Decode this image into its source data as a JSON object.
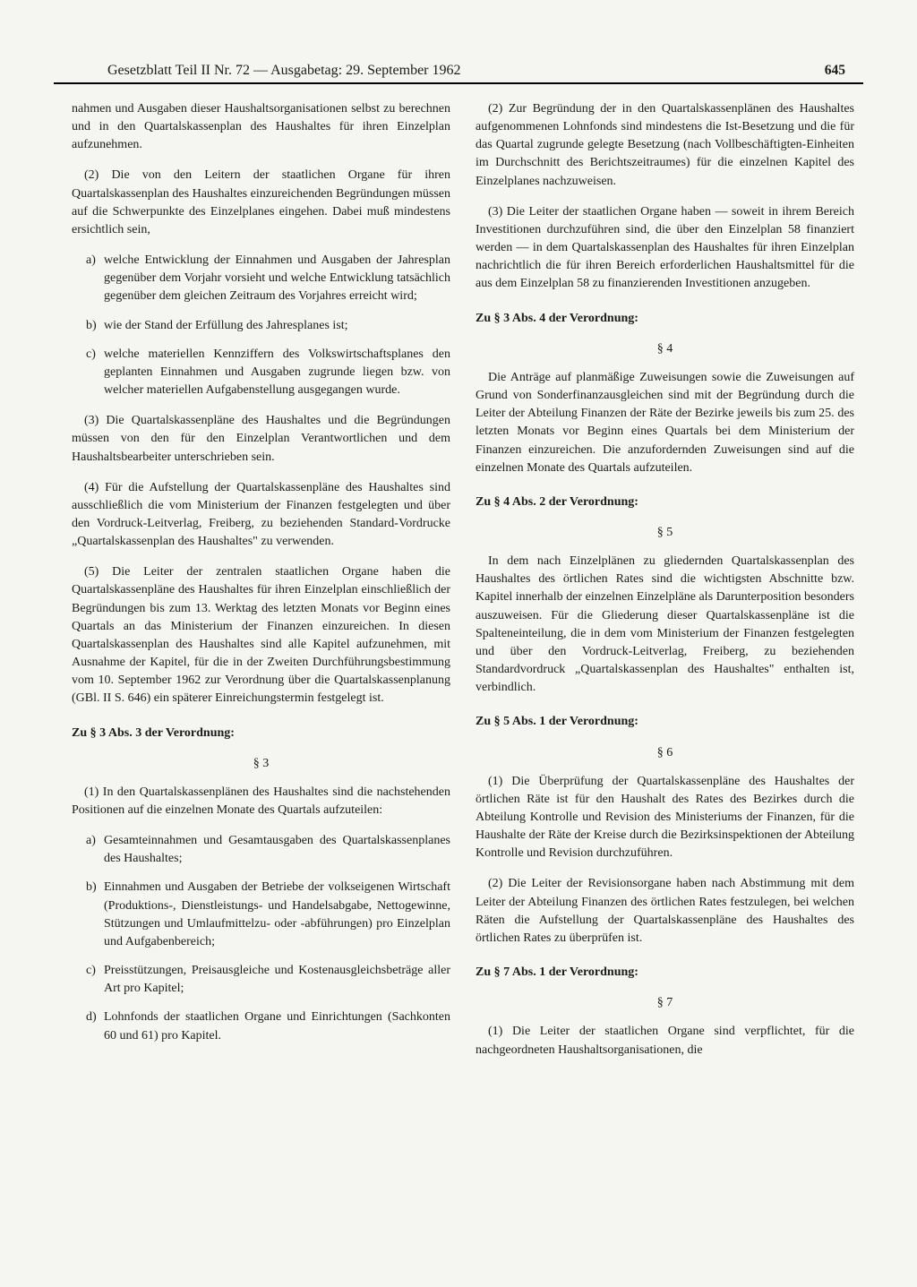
{
  "header": {
    "title": "Gesetzblatt Teil II Nr. 72 — Ausgabetag: 29. September 1962",
    "page": "645"
  },
  "left": {
    "p1": "nahmen und Ausgaben dieser Haushaltsorganisationen selbst zu berechnen und in den Quartalskassenplan des Haushaltes für ihren Einzelplan aufzunehmen.",
    "p2": "(2) Die von den Leitern der staatlichen Organe für ihren Quartalskassenplan des Haushaltes einzureichenden Begründungen müssen auf die Schwerpunkte des Einzelplanes eingehen. Dabei muß mindestens ersichtlich sein,",
    "list1": {
      "a": "welche Entwicklung der Einnahmen und Ausgaben der Jahresplan gegenüber dem Vorjahr vorsieht und welche Entwicklung tatsächlich gegenüber dem gleichen Zeitraum des Vorjahres erreicht wird;",
      "b": "wie der Stand der Erfüllung des Jahresplanes ist;",
      "c": "welche materiellen Kennziffern des Volkswirtschaftsplanes den geplanten Einnahmen und Ausgaben zugrunde liegen bzw. von welcher materiellen Aufgabenstellung ausgegangen wurde."
    },
    "p3": "(3) Die Quartalskassenpläne des Haushaltes und die Begründungen müssen von den für den Einzelplan Verantwortlichen und dem Haushaltsbearbeiter unterschrieben sein.",
    "p4": "(4) Für die Aufstellung der Quartalskassenpläne des Haushaltes sind ausschließlich die vom Ministerium der Finanzen festgelegten und über den Vordruck-Leitverlag, Freiberg, zu beziehenden Standard-Vordrucke „Quartalskassenplan des Haushaltes\" zu verwenden.",
    "p5": "(5) Die Leiter der zentralen staatlichen Organe haben die Quartalskassenpläne des Haushaltes für ihren Einzelplan einschließlich der Begründungen bis zum 13. Werktag des letzten Monats vor Beginn eines Quartals an das Ministerium der Finanzen einzureichen. In diesen Quartalskassenplan des Haushaltes sind alle Kapitel aufzunehmen, mit Ausnahme der Kapitel, für die in der Zweiten Durchführungsbestimmung vom 10. September 1962 zur Verordnung über die Quartalskassenplanung (GBl. II S. 646) ein späterer Einreichungstermin festgelegt ist.",
    "h1": "Zu § 3 Abs. 3 der Verordnung:",
    "s3": "§ 3",
    "p6": "(1) In den Quartalskassenplänen des Haushaltes sind die nachstehenden Positionen auf die einzelnen Monate des Quartals aufzuteilen:",
    "list2": {
      "a": "Gesamteinnahmen und Gesamtausgaben des Quartalskassenplanes des Haushaltes;",
      "b": "Einnahmen und Ausgaben der Betriebe der volkseigenen Wirtschaft (Produktions-, Dienstleistungs- und Handelsabgabe, Nettogewinne, Stützungen und Umlaufmittelzu- oder -abführungen) pro Einzelplan und Aufgabenbereich;",
      "c": "Preisstützungen, Preisausgleiche und Kostenausgleichsbeträge aller Art pro Kapitel;",
      "d": "Lohnfonds der staatlichen Organe und Einrichtungen (Sachkonten 60 und 61) pro Kapitel."
    }
  },
  "right": {
    "p1": "(2) Zur Begründung der in den Quartalskassenplänen des Haushaltes aufgenommenen Lohnfonds sind mindestens die Ist-Besetzung und die für das Quartal zugrunde gelegte Besetzung (nach Vollbeschäftigten-Einheiten im Durchschnitt des Berichtszeitraumes) für die einzelnen Kapitel des Einzelplanes nachzuweisen.",
    "p2": "(3) Die Leiter der staatlichen Organe haben — soweit in ihrem Bereich Investitionen durchzuführen sind, die über den Einzelplan 58 finanziert werden — in dem Quartalskassenplan des Haushaltes für ihren Einzelplan nachrichtlich die für ihren Bereich erforderlichen Haushaltsmittel für die aus dem Einzelplan 58 zu finanzierenden Investitionen anzugeben.",
    "h1": "Zu § 3 Abs. 4 der Verordnung:",
    "s4": "§ 4",
    "p3": "Die Anträge auf planmäßige Zuweisungen sowie die Zuweisungen auf Grund von Sonderfinanzausgleichen sind mit der Begründung durch die Leiter der Abteilung Finanzen der Räte der Bezirke jeweils bis zum 25. des letzten Monats vor Beginn eines Quartals bei dem Ministerium der Finanzen einzureichen. Die anzufordernden Zuweisungen sind auf die einzelnen Monate des Quartals aufzuteilen.",
    "h2": "Zu § 4 Abs. 2 der Verordnung:",
    "s5": "§ 5",
    "p4": "In dem nach Einzelplänen zu gliedernden Quartalskassenplan des Haushaltes des örtlichen Rates sind die wichtigsten Abschnitte bzw. Kapitel innerhalb der einzelnen Einzelpläne als Darunterposition besonders auszuweisen. Für die Gliederung dieser Quartalskassenpläne ist die Spalteneinteilung, die in dem vom Ministerium der Finanzen festgelegten und über den Vordruck-Leitverlag, Freiberg, zu beziehenden Standardvordruck „Quartalskassenplan des Haushaltes\" enthalten ist, verbindlich.",
    "h3": "Zu § 5 Abs. 1 der Verordnung:",
    "s6": "§ 6",
    "p5": "(1) Die Überprüfung der Quartalskassenpläne des Haushaltes der örtlichen Räte ist für den Haushalt des Rates des Bezirkes durch die Abteilung Kontrolle und Revision des Ministeriums der Finanzen, für die Haushalte der Räte der Kreise durch die Bezirksinspektionen der Abteilung Kontrolle und Revision durchzuführen.",
    "p6": "(2) Die Leiter der Revisionsorgane haben nach Abstimmung mit dem Leiter der Abteilung Finanzen des örtlichen Rates festzulegen, bei welchen Räten die Aufstellung der Quartalskassenpläne des Haushaltes des örtlichen Rates zu überprüfen ist.",
    "h4": "Zu § 7 Abs. 1 der Verordnung:",
    "s7": "§ 7",
    "p7": "(1) Die Leiter der staatlichen Organe sind verpflichtet, für die nachgeordneten Haushaltsorganisationen, die"
  },
  "markers": {
    "a": "a)",
    "b": "b)",
    "c": "c)",
    "d": "d)"
  }
}
